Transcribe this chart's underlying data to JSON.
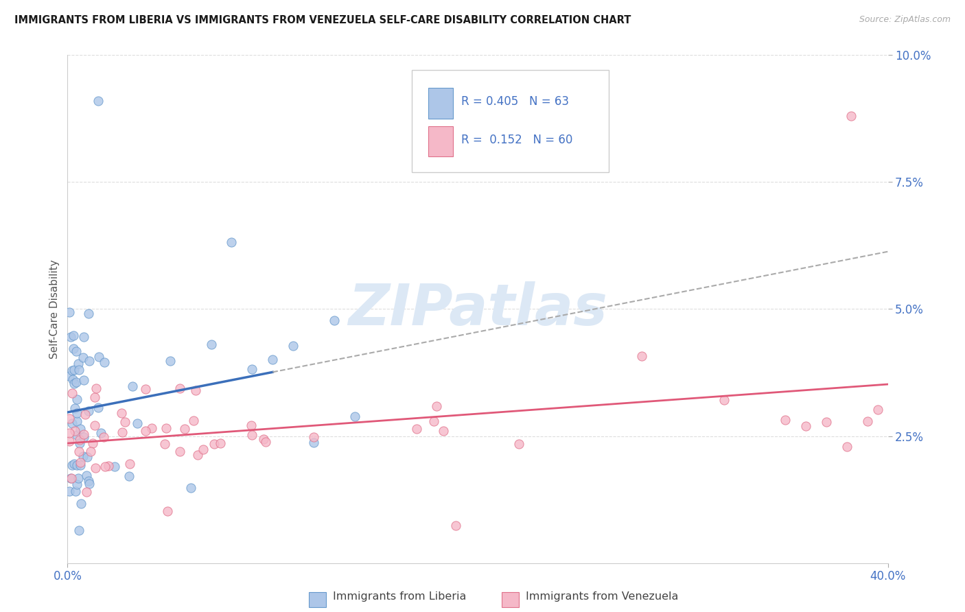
{
  "title": "IMMIGRANTS FROM LIBERIA VS IMMIGRANTS FROM VENEZUELA SELF-CARE DISABILITY CORRELATION CHART",
  "source": "Source: ZipAtlas.com",
  "ylabel": "Self-Care Disability",
  "xlabel_liberia": "Immigrants from Liberia",
  "xlabel_venezuela": "Immigrants from Venezuela",
  "liberia_R": 0.405,
  "liberia_N": 63,
  "venezuela_R": 0.152,
  "venezuela_N": 60,
  "title_color": "#1a1a1a",
  "source_color": "#888888",
  "liberia_color": "#adc6e8",
  "liberia_edge_color": "#6699cc",
  "liberia_line_color": "#3b6fba",
  "venezuela_color": "#f5b8c8",
  "venezuela_edge_color": "#e0708a",
  "venezuela_line_color": "#e05878",
  "tick_label_color": "#4472c4",
  "xmin": 0.0,
  "xmax": 0.4,
  "ymin": 0.0,
  "ymax": 0.1,
  "background_color": "#ffffff",
  "grid_color": "#dddddd",
  "watermark_color": "#dce8f5"
}
